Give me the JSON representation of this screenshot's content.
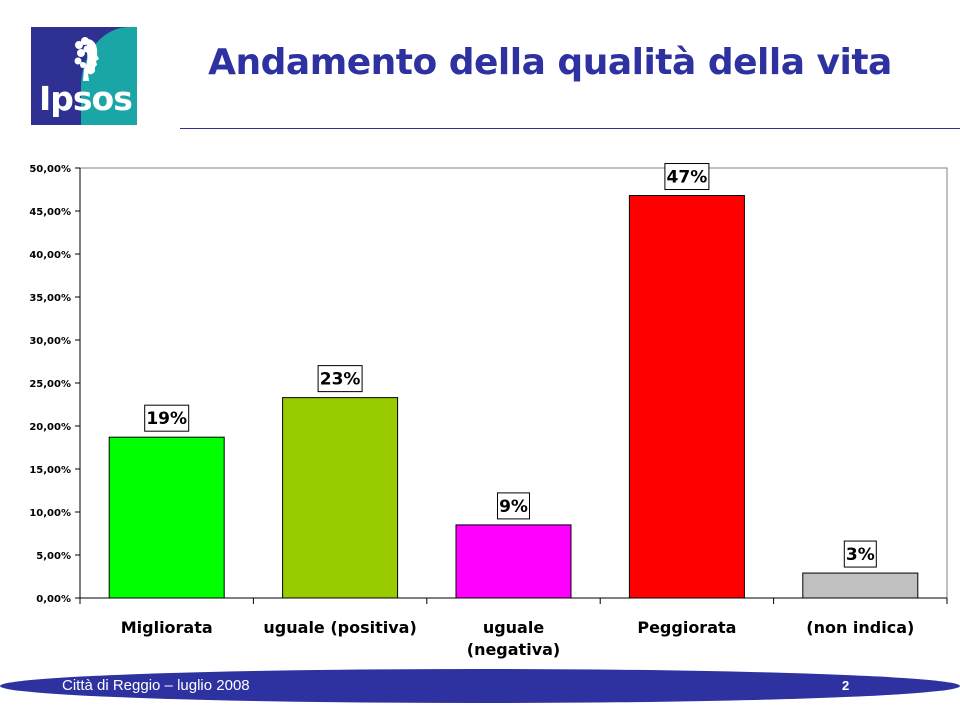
{
  "header": {
    "logo_text": "Ipsos",
    "title": "Andamento della qualità della vita"
  },
  "chart_data": {
    "type": "bar",
    "categories": [
      "Migliorata",
      "uguale (positiva)",
      "uguale (negativa)",
      "Peggiorata",
      "(non indica)"
    ],
    "category_lines": [
      [
        "Migliorata"
      ],
      [
        "uguale (positiva)"
      ],
      [
        "uguale",
        "(negativa)"
      ],
      [
        "Peggiorata"
      ],
      [
        "(non indica)"
      ]
    ],
    "values": [
      18.7,
      23.3,
      8.5,
      46.8,
      2.9
    ],
    "data_labels": [
      "19%",
      "23%",
      "9%",
      "47%",
      "3%"
    ],
    "colors": [
      "#00ff00",
      "#99cc00",
      "#ff00ff",
      "#ff0000",
      "#c0c0c0"
    ],
    "ylim": [
      0,
      50
    ],
    "ytick_values": [
      0,
      5,
      10,
      15,
      20,
      25,
      30,
      35,
      40,
      45,
      50
    ],
    "ytick_labels": [
      "0,00%",
      "5,00%",
      "10,00%",
      "15,00%",
      "20,00%",
      "25,00%",
      "30,00%",
      "35,00%",
      "40,00%",
      "45,00%",
      "50,00%"
    ],
    "grid": false,
    "legend": "none"
  },
  "footer": {
    "text": "Città di Reggio – luglio 2008",
    "page_number": "2"
  }
}
